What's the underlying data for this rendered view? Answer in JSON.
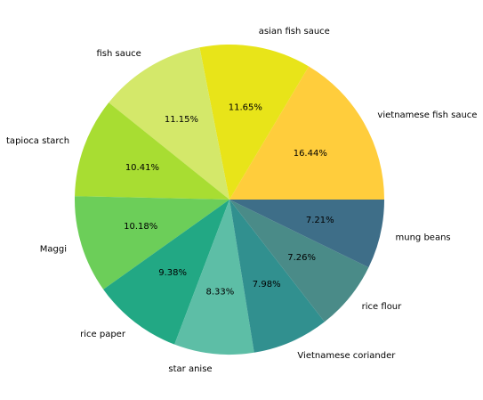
{
  "chart_data": {
    "type": "pie",
    "title": "",
    "start_angle_deg": 0,
    "direction": "counterclockwise",
    "legend": "none",
    "slices": [
      {
        "label": "vietnamese fish sauce",
        "value": 16.44,
        "pct_text": "16.44%",
        "color": "#FFCD3C"
      },
      {
        "label": "asian fish sauce",
        "value": 11.65,
        "pct_text": "11.65%",
        "color": "#E8E419"
      },
      {
        "label": "fish sauce",
        "value": 11.15,
        "pct_text": "11.15%",
        "color": "#D4E86A"
      },
      {
        "label": "tapioca starch",
        "value": 10.41,
        "pct_text": "10.41%",
        "color": "#A8DD32"
      },
      {
        "label": "Maggi",
        "value": 10.18,
        "pct_text": "10.18%",
        "color": "#6CCE59"
      },
      {
        "label": "rice paper",
        "value": 9.38,
        "pct_text": "9.38%",
        "color": "#22A884"
      },
      {
        "label": "star anise",
        "value": 8.33,
        "pct_text": "8.33%",
        "color": "#5DBEA6"
      },
      {
        "label": "Vietnamese coriander",
        "value": 7.98,
        "pct_text": "7.98%",
        "color": "#31908F"
      },
      {
        "label": "rice flour",
        "value": 7.26,
        "pct_text": "7.26%",
        "color": "#4A8B88"
      },
      {
        "label": "mung beans",
        "value": 7.21,
        "pct_text": "7.21%",
        "color": "#3E6E88"
      }
    ]
  }
}
